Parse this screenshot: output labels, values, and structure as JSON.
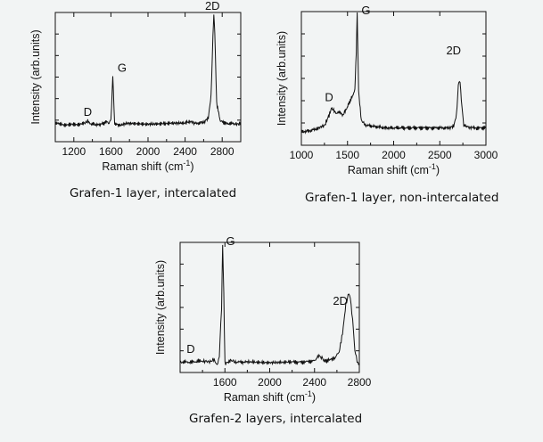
{
  "chart_data": [
    {
      "type": "line",
      "title": "",
      "caption": "Grafen-1 layer, intercalated",
      "xlabel_base": "Raman shift (cm",
      "xlabel_sup": "-1",
      "xlabel_end": ")",
      "ylabel": "Intensity (arb.units)",
      "xlim": [
        1000,
        3000
      ],
      "xticks": [
        1200,
        1600,
        2000,
        2400,
        2800
      ],
      "xtick_labels": [
        "1200",
        "1600",
        "2000",
        "2400",
        "2800"
      ],
      "ylim": [
        0,
        100
      ],
      "yticks_labeled": false,
      "grid": false,
      "series": [
        {
          "x": [
            1000,
            1150,
            1300,
            1350,
            1380,
            1450,
            1520,
            1560,
            1580,
            1600,
            1620,
            1640,
            1680,
            1800,
            2000,
            2200,
            2400,
            2450,
            2500,
            2600,
            2650,
            2680,
            2700,
            2710,
            2720,
            2740,
            2780,
            2850,
            2950,
            3000
          ],
          "y": [
            14,
            13,
            14,
            16,
            14,
            13,
            14,
            16,
            14,
            17,
            50,
            14,
            13,
            14,
            14,
            14,
            14,
            16,
            14,
            15,
            18,
            35,
            82,
            98,
            85,
            30,
            16,
            14,
            14,
            14
          ]
        }
      ],
      "annotations": [
        {
          "text": "D",
          "x": 1350,
          "y": 20
        },
        {
          "text": "G",
          "x": 1720,
          "y": 54
        },
        {
          "text": "2D",
          "x": 2695,
          "y": 102
        }
      ]
    },
    {
      "type": "line",
      "title": "",
      "caption": "Grafen-1 layer, non-intercalated",
      "xlabel_base": "Raman shift (cm",
      "xlabel_sup": "-1",
      "xlabel_end": ")",
      "ylabel": "Intensity (arb.units)",
      "xlim": [
        1000,
        3000
      ],
      "xticks": [
        1000,
        1500,
        2000,
        2500,
        3000
      ],
      "xtick_labels": [
        "1000",
        "1500",
        "2000",
        "2500",
        "3000"
      ],
      "ylim": [
        0,
        100
      ],
      "yticks_labeled": false,
      "grid": false,
      "series": [
        {
          "x": [
            1000,
            1100,
            1200,
            1250,
            1300,
            1330,
            1350,
            1380,
            1420,
            1450,
            1480,
            1520,
            1560,
            1580,
            1595,
            1605,
            1620,
            1650,
            1700,
            1800,
            1900,
            2000,
            2100,
            2200,
            2300,
            2400,
            2500,
            2600,
            2650,
            2680,
            2700,
            2720,
            2740,
            2760,
            2800,
            2850,
            2900,
            3000
          ],
          "y": [
            10,
            11,
            13,
            15,
            22,
            28,
            26,
            24,
            25,
            22,
            26,
            32,
            38,
            42,
            70,
            100,
            40,
            18,
            15,
            14,
            13,
            13,
            13,
            13,
            13,
            13,
            13,
            13,
            14,
            22,
            45,
            48,
            28,
            15,
            14,
            13,
            13,
            13
          ]
        }
      ],
      "annotations": [
        {
          "text": "D",
          "x": 1300,
          "y": 33
        },
        {
          "text": "G",
          "x": 1700,
          "y": 98
        },
        {
          "text": "2D",
          "x": 2650,
          "y": 68
        }
      ]
    },
    {
      "type": "line",
      "title": "",
      "caption": "Grafen-2 layers, intercalated",
      "xlabel_base": "Raman shift (cm",
      "xlabel_sup": "-1",
      "xlabel_end": ")",
      "ylabel": "Intensity (arb.units)",
      "xlim": [
        1200,
        2800
      ],
      "xticks": [
        1600,
        2000,
        2400,
        2800
      ],
      "xtick_labels": [
        "1600",
        "2000",
        "2400",
        "2800"
      ],
      "ylim": [
        0,
        100
      ],
      "yticks_labeled": false,
      "grid": false,
      "series": [
        {
          "x": [
            1200,
            1300,
            1400,
            1450,
            1500,
            1530,
            1550,
            1570,
            1580,
            1590,
            1600,
            1620,
            1650,
            1700,
            1800,
            2000,
            2200,
            2300,
            2400,
            2440,
            2460,
            2480,
            2520,
            2580,
            2620,
            2650,
            2680,
            2700,
            2720,
            2740,
            2760,
            2780,
            2800
          ],
          "y": [
            8,
            8,
            9,
            8,
            10,
            6,
            12,
            50,
            98,
            60,
            8,
            7,
            9,
            8,
            8,
            8,
            8,
            8,
            9,
            13,
            12,
            9,
            9,
            11,
            16,
            30,
            52,
            60,
            58,
            40,
            18,
            8,
            7
          ]
        }
      ],
      "annotations": [
        {
          "text": "D",
          "x": 1295,
          "y": 15
        },
        {
          "text": "G",
          "x": 1650,
          "y": 98
        },
        {
          "text": "2D",
          "x": 2630,
          "y": 52
        }
      ]
    }
  ]
}
